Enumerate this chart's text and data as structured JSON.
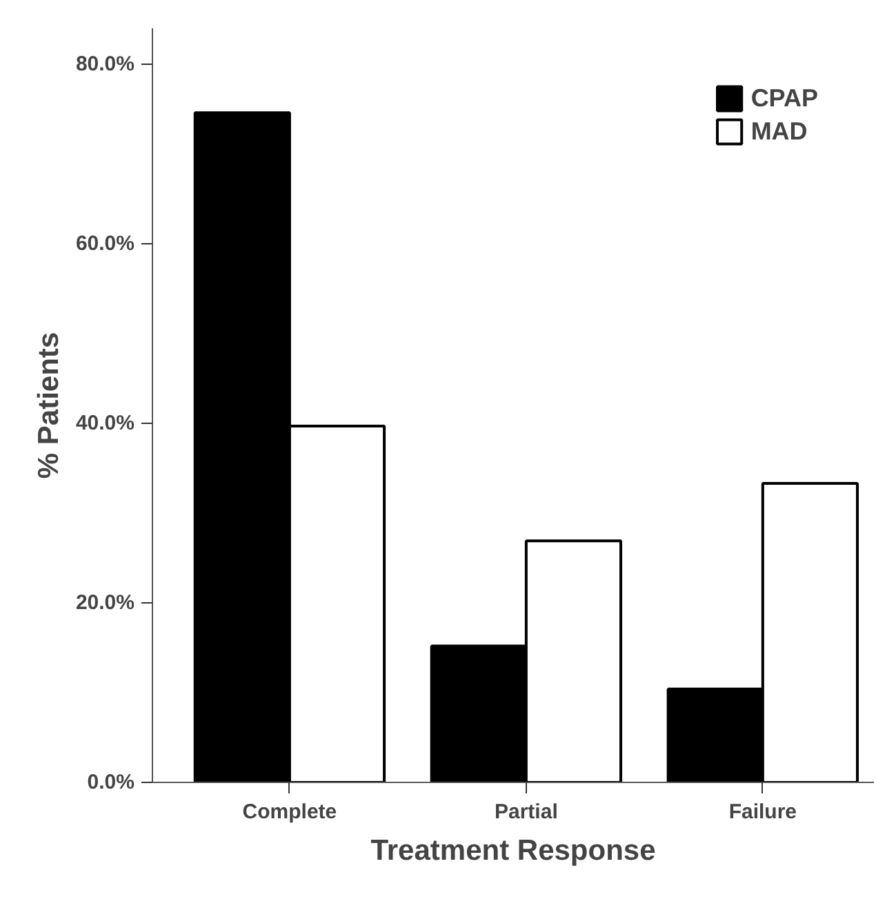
{
  "chart_data": {
    "type": "bar",
    "xlabel": "Treatment Response",
    "ylabel": "% Patients",
    "categories": [
      "Complete",
      "Partial",
      "Failure"
    ],
    "series": [
      {
        "name": "CPAP",
        "color": "#000000",
        "values": [
          74.6,
          15.2,
          10.4
        ]
      },
      {
        "name": "MAD",
        "color": "#ffffff",
        "values": [
          39.7,
          26.9,
          33.3
        ]
      }
    ],
    "ylim": [
      0,
      84
    ],
    "yticks": [
      {
        "value": 0,
        "label": "0.0%"
      },
      {
        "value": 20,
        "label": "20.0%"
      },
      {
        "value": 40,
        "label": "40.0%"
      },
      {
        "value": 60,
        "label": "60.0%"
      },
      {
        "value": 80,
        "label": "80.0%"
      }
    ],
    "grid": false,
    "legend": "top right"
  }
}
